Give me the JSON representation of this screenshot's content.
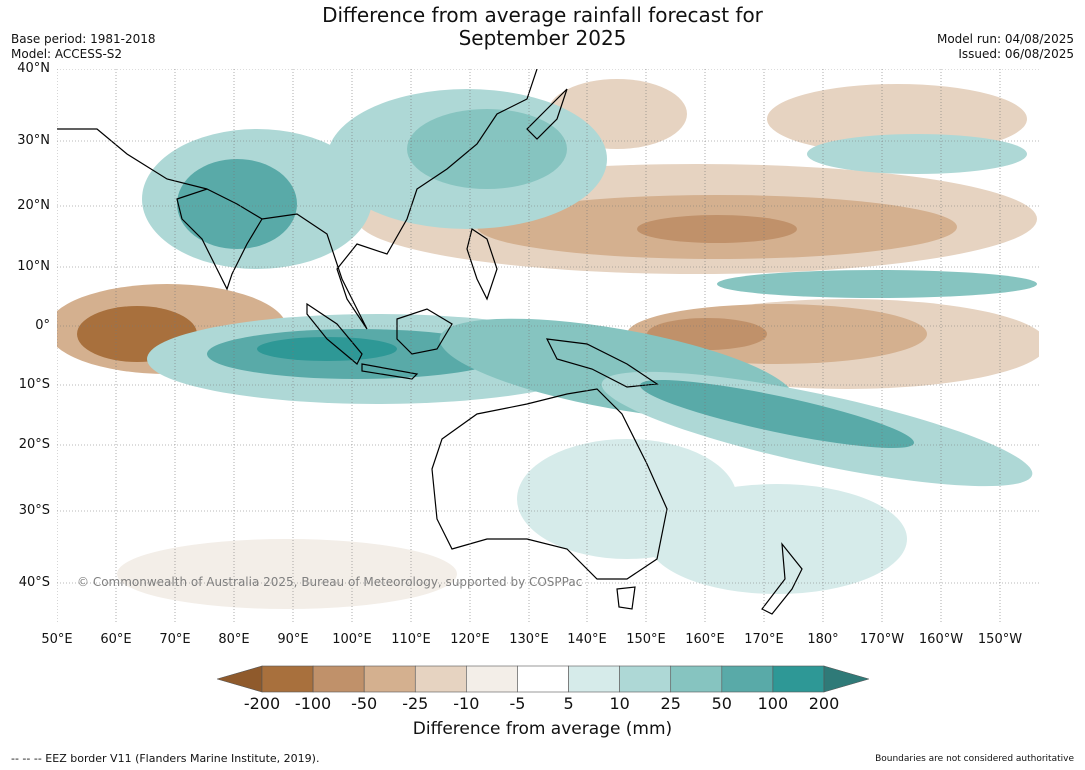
{
  "header": {
    "title_line1": "Difference from average rainfall forecast for",
    "title_line2": "September 2025",
    "base_period": "Base period: 1981-2018",
    "model": "Model: ACCESS-S2",
    "model_run": "Model run: 04/08/2025",
    "issued": "Issued: 06/08/2025"
  },
  "map": {
    "lat_labels": [
      "40°N",
      "30°N",
      "20°N",
      "10°N",
      "0°",
      "10°S",
      "20°S",
      "30°S",
      "40°S"
    ],
    "lon_labels": [
      "50°E",
      "60°E",
      "70°E",
      "80°E",
      "90°E",
      "100°E",
      "110°E",
      "120°E",
      "130°E",
      "140°E",
      "150°E",
      "160°E",
      "170°E",
      "180°",
      "170°W",
      "160°W",
      "150°W"
    ],
    "copyright": "© Commonwealth of Australia 2025, Bureau of Meteorology, supported by COSPPac"
  },
  "legend": {
    "title": "Difference from average (mm)",
    "ticks": [
      "-200",
      "-100",
      "-50",
      "-25",
      "-10",
      "-5",
      "5",
      "10",
      "25",
      "50",
      "100",
      "200"
    ],
    "colors": [
      "#a8703d",
      "#c0916a",
      "#d4b08f",
      "#e6d3c1",
      "#f3eee8",
      "#ffffff",
      "#d6ebea",
      "#aed8d6",
      "#86c4c0",
      "#59aaa8",
      "#2e9896"
    ],
    "low_color": "#8f5a2c",
    "high_color": "#2f7a78"
  },
  "footer": {
    "eez": "--  --  -- EEZ border V11 (Flanders Marine Institute, 2019).",
    "boundaries": "Boundaries are not considered authoritative"
  }
}
